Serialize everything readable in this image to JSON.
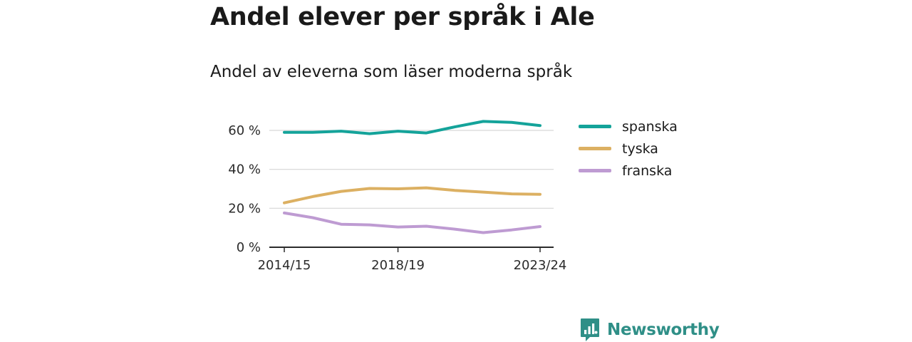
{
  "header": {
    "title": "Andel elever per språk i Ale",
    "subtitle": "Andel av eleverna som läser moderna språk"
  },
  "brand": {
    "name": "Newsworthy",
    "color": "#2f8f87"
  },
  "chart_data": {
    "type": "line",
    "title": "Andel elever per språk i Ale",
    "subtitle": "Andel av eleverna som läser moderna språk",
    "xlabel": "",
    "ylabel": "",
    "x": [
      "2014/15",
      "2015/16",
      "2016/17",
      "2017/18",
      "2018/19",
      "2019/20",
      "2020/21",
      "2021/22",
      "2022/23",
      "2023/24"
    ],
    "x_tick_labels": [
      "2014/15",
      "2018/19",
      "2023/24"
    ],
    "y_ticks": [
      0,
      20,
      40,
      60
    ],
    "y_tick_labels": [
      "0 %",
      "20 %",
      "40 %",
      "60 %"
    ],
    "ylim": [
      0,
      70
    ],
    "grid": "horizontal",
    "legend_position": "right",
    "series": [
      {
        "name": "spanska",
        "color": "#14a39a",
        "values": [
          59,
          59,
          59.6,
          58.3,
          59.6,
          58.7,
          61.8,
          64.6,
          64.1,
          62.5
        ]
      },
      {
        "name": "tyska",
        "color": "#dcb062",
        "values": [
          22.8,
          26,
          28.7,
          30.2,
          30,
          30.5,
          29.2,
          28.3,
          27.4,
          27.2
        ]
      },
      {
        "name": "franska",
        "color": "#be9bd2",
        "values": [
          17.6,
          15.2,
          11.8,
          11.5,
          10.4,
          10.8,
          9.3,
          7.5,
          8.9,
          10.6
        ]
      }
    ]
  }
}
